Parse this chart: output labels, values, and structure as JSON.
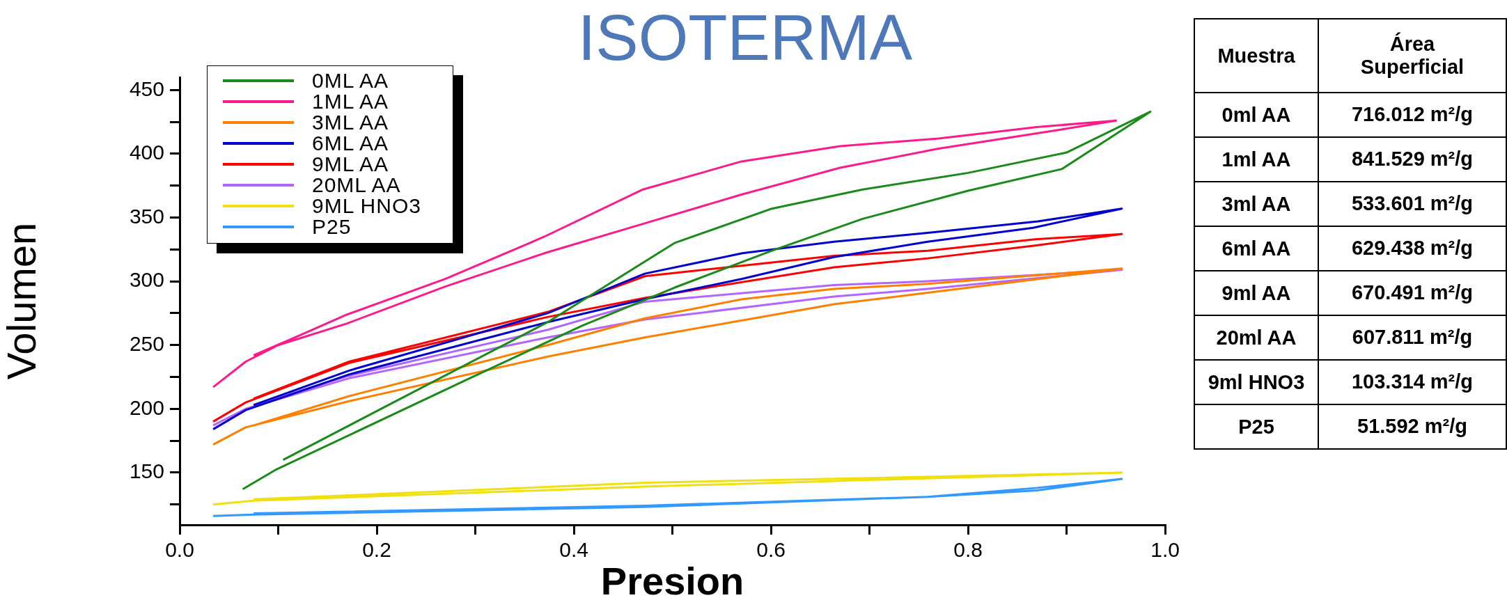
{
  "chart_data": [
    {
      "type": "line",
      "title": "ISOTERMA",
      "xlabel": "Presion",
      "ylabel": "Volumen",
      "xlim": [
        0,
        1
      ],
      "ylim": [
        109,
        460
      ],
      "xticks": [
        {
          "value": 0,
          "label": "0.0"
        },
        {
          "value": 0.1,
          "label": null
        },
        {
          "value": 0.2,
          "label": "0.2"
        },
        {
          "value": 0.3,
          "label": null
        },
        {
          "value": 0.4,
          "label": "0.4"
        },
        {
          "value": 0.5,
          "label": null
        },
        {
          "value": 0.6,
          "label": "0.6"
        },
        {
          "value": 0.7,
          "label": null
        },
        {
          "value": 0.8,
          "label": "0.8"
        },
        {
          "value": 0.9,
          "label": null
        },
        {
          "value": 1,
          "label": "1.0"
        }
      ],
      "yticks": [
        {
          "value": 125,
          "label": null
        },
        150,
        {
          "value": 175,
          "label": null
        },
        200,
        {
          "value": 225,
          "label": null
        },
        250,
        {
          "value": 275,
          "label": null
        },
        300,
        {
          "value": 325,
          "label": null
        },
        350,
        {
          "value": 375,
          "label": null
        },
        400,
        {
          "value": 425,
          "label": null
        },
        450
      ],
      "grid": false,
      "legend": "top left",
      "line_style": "solid",
      "series": [
        {
          "name": "0ML AA",
          "color": "#1a8a1a",
          "x": [
            0.064,
            0.097,
            0.3,
            0.408,
            0.502,
            0.601,
            0.693,
            0.8,
            0.895,
            0.985,
            0.9,
            0.8,
            0.693,
            0.601,
            0.502,
            0.3735,
            0.105
          ],
          "values": [
            137,
            152,
            226,
            265,
            295,
            324,
            349,
            371,
            388,
            433,
            401,
            385,
            372,
            357,
            330,
            268,
            160
          ]
        },
        {
          "name": "1ML AA",
          "color": "#ff1a8c",
          "x": [
            0.034,
            0.067,
            0.1,
            0.17,
            0.27,
            0.37,
            0.47,
            0.57,
            0.67,
            0.77,
            0.87,
            0.95,
            0.87,
            0.77,
            0.67,
            0.57,
            0.47,
            0.37,
            0.27,
            0.17,
            0.12,
            0.075
          ],
          "values": [
            217,
            237,
            250,
            267,
            296,
            322,
            345,
            368,
            389,
            404,
            416,
            426,
            421,
            412,
            406,
            394,
            372,
            335,
            302,
            274,
            257,
            242
          ]
        },
        {
          "name": "3ML AA",
          "color": "#ff8000",
          "x": [
            0.034,
            0.067,
            0.172,
            0.3735,
            0.472,
            0.664,
            0.759,
            0.956,
            0.759,
            0.664,
            0.571,
            0.472,
            0.3735,
            0.172,
            0.075
          ],
          "values": [
            172,
            185.5,
            206,
            241,
            256,
            282,
            291,
            310,
            298,
            294,
            286,
            271,
            250,
            210,
            187
          ]
        },
        {
          "name": "6ML AA",
          "color": "#0000cc",
          "x": [
            0.034,
            0.067,
            0.172,
            0.3735,
            0.472,
            0.571,
            0.664,
            0.759,
            0.866,
            0.956,
            0.871,
            0.759,
            0.664,
            0.571,
            0.472,
            0.3735,
            0.172,
            0.075
          ],
          "values": [
            184,
            199,
            227,
            268,
            286,
            302,
            319,
            331,
            342,
            357,
            347,
            338,
            331,
            322,
            306,
            275,
            230,
            203
          ]
        },
        {
          "name": "9ML AA",
          "color": "#ff0000",
          "x": [
            0.034,
            0.067,
            0.172,
            0.3735,
            0.472,
            0.664,
            0.759,
            0.868,
            0.956,
            0.868,
            0.759,
            0.664,
            0.472,
            0.3735,
            0.172,
            0.075
          ],
          "values": [
            190,
            205,
            236,
            272,
            287,
            311,
            318,
            328,
            337,
            333,
            324,
            320,
            304,
            276,
            237,
            208
          ]
        },
        {
          "name": "20ML AA",
          "color": "#b266ff",
          "x": [
            0.034,
            0.067,
            0.172,
            0.3735,
            0.472,
            0.664,
            0.759,
            0.956,
            0.759,
            0.664,
            0.472,
            0.3735,
            0.172,
            0.075
          ],
          "values": [
            187,
            200,
            224,
            256,
            270,
            288,
            294,
            309,
            300,
            297,
            284,
            262,
            226,
            203
          ]
        },
        {
          "name": "9ML HNO3",
          "color": "#f0e010",
          "x": [
            0.034,
            0.075,
            0.472,
            0.956,
            0.472,
            0.075
          ],
          "values": [
            125,
            128,
            139,
            150,
            142,
            129
          ]
        },
        {
          "name": "P25",
          "color": "#3399ff",
          "x": [
            0.034,
            0.075,
            0.472,
            0.759,
            0.87,
            0.956,
            0.87,
            0.759,
            0.472,
            0.075
          ],
          "values": [
            116,
            117,
            123,
            131,
            136,
            145,
            138,
            131,
            124,
            118
          ]
        }
      ]
    },
    {
      "type": "other",
      "xlabel": "Muestra",
      "ylabel": "Área Superficial",
      "categories": [
        "0ml AA",
        "1ml AA",
        "3ml AA",
        "6ml AA",
        "9ml AA",
        "20ml AA",
        "9ml HNO3",
        "P25"
      ],
      "value_labels": [
        "716.012 m²/g",
        "841.529 m²/g",
        "533.601 m²/g",
        "629.438 m²/g",
        "670.491 m²/g",
        "607.811 m²/g",
        "103.314 m²/g",
        "51.592 m²/g"
      ]
    }
  ]
}
